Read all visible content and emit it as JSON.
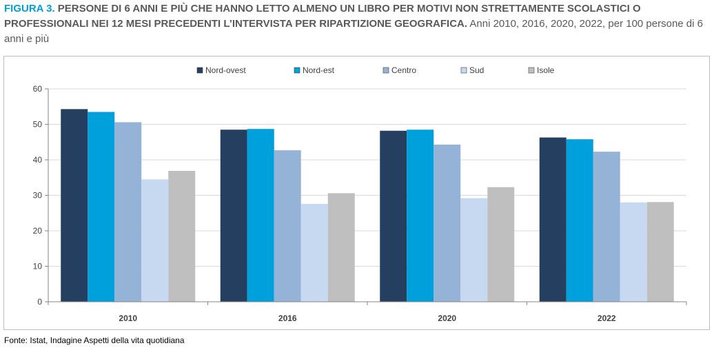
{
  "title": {
    "label": "FIGURA 3.",
    "main": "PERSONE DI 6 ANNI E PIÙ CHE HANNO LETTO ALMENO UN LIBRO PER MOTIVI NON STRETTAMENTE SCOLASTICI O PROFESSIONALI NEI 12 MESI PRECEDENTI L’INTERVISTA PER RIPARTIZIONE GEOGRAFICA.",
    "sub": "Anni 2010, 2016, 2020, 2022, per 100 persone di 6 anni e più"
  },
  "source": "Fonte: Istat, Indagine Aspetti della vita quotidiana",
  "chart_data": {
    "type": "bar",
    "categories": [
      "2010",
      "2016",
      "2020",
      "2022"
    ],
    "series": [
      {
        "name": "Nord-ovest",
        "color": "#243f5f",
        "values": [
          54.3,
          48.5,
          48.2,
          46.3
        ]
      },
      {
        "name": "Nord-est",
        "color": "#00a0dc",
        "values": [
          53.5,
          48.7,
          48.5,
          45.8
        ]
      },
      {
        "name": "Centro",
        "color": "#95b3d7",
        "values": [
          50.6,
          42.7,
          44.3,
          42.3
        ]
      },
      {
        "name": "Sud",
        "color": "#c6d9f1",
        "values": [
          34.5,
          27.6,
          29.2,
          28.0
        ]
      },
      {
        "name": "Isole",
        "color": "#bfbfbf",
        "values": [
          36.9,
          30.6,
          32.3,
          28.1
        ]
      }
    ],
    "ylim": [
      0,
      60
    ],
    "yticks": [
      0,
      10,
      20,
      30,
      40,
      50,
      60
    ],
    "grid": true,
    "legend": "top-center"
  }
}
